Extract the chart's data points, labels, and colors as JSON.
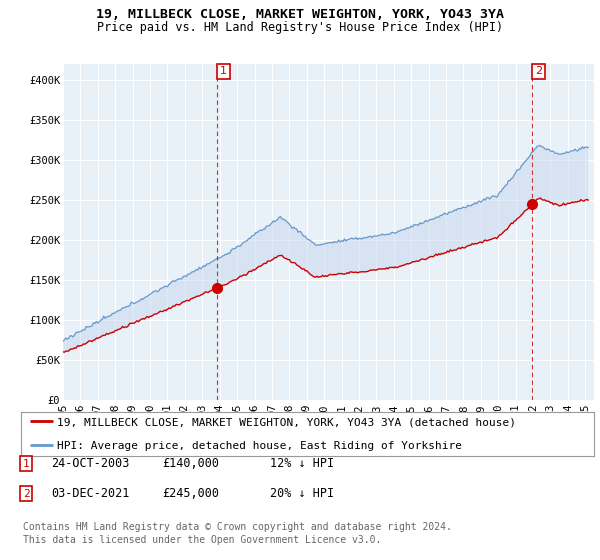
{
  "title": "19, MILLBECK CLOSE, MARKET WEIGHTON, YORK, YO43 3YA",
  "subtitle": "Price paid vs. HM Land Registry's House Price Index (HPI)",
  "ylim": [
    0,
    420000
  ],
  "yticks": [
    0,
    50000,
    100000,
    150000,
    200000,
    250000,
    300000,
    350000,
    400000
  ],
  "ytick_labels": [
    "£0",
    "£50K",
    "£100K",
    "£150K",
    "£200K",
    "£250K",
    "£300K",
    "£350K",
    "£400K"
  ],
  "xlim_start": 1995.0,
  "xlim_end": 2025.5,
  "sale1_x": 2003.82,
  "sale1_y": 140000,
  "sale2_x": 2021.92,
  "sale2_y": 245000,
  "legend_red": "19, MILLBECK CLOSE, MARKET WEIGHTON, YORK, YO43 3YA (detached house)",
  "legend_blue": "HPI: Average price, detached house, East Riding of Yorkshire",
  "footer": "Contains HM Land Registry data © Crown copyright and database right 2024.\nThis data is licensed under the Open Government Licence v3.0.",
  "red_color": "#cc0000",
  "blue_color": "#6699cc",
  "fill_color": "#ddeeff",
  "grid_color": "#cccccc",
  "bg_plot_color": "#e8f0f8",
  "bg_color": "#ffffff",
  "vline_color": "#cc0000",
  "title_fontsize": 9.5,
  "subtitle_fontsize": 8.5,
  "tick_fontsize": 7.5,
  "legend_fontsize": 8,
  "annot_fontsize": 8.5,
  "footer_fontsize": 7
}
